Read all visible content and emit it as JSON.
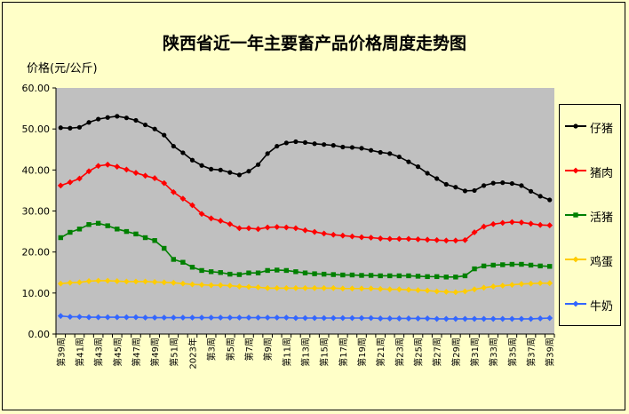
{
  "chart_data": {
    "type": "line",
    "title": "陕西省近一年主要畜产品价格周度走势图",
    "ylabel": "价格(元/公斤)",
    "xlabel": "",
    "ylim": [
      0,
      60
    ],
    "yticks": [
      "0.00",
      "10.00",
      "20.00",
      "30.00",
      "40.00",
      "50.00",
      "60.00"
    ],
    "grid": false,
    "legend": "right",
    "x": [
      "第39周",
      "第40周",
      "第41周",
      "第42周",
      "第43周",
      "第44周",
      "第45周",
      "第46周",
      "第47周",
      "第48周",
      "第49周",
      "第50周",
      "第51周",
      "第52周",
      "2023年",
      "第2周",
      "第3周",
      "第4周",
      "第5周",
      "第6周",
      "第7周",
      "第8周",
      "第9周",
      "第10周",
      "第11周",
      "第12周",
      "第13周",
      "第14周",
      "第15周",
      "第16周",
      "第17周",
      "第18周",
      "第19周",
      "第20周",
      "第21周",
      "第22周",
      "第23周",
      "第24周",
      "第25周",
      "第26周",
      "第27周",
      "第28周",
      "第29周",
      "第30周",
      "第31周",
      "第32周",
      "第33周",
      "第34周",
      "第35周",
      "第36周",
      "第37周",
      "第38周",
      "第39周"
    ],
    "series": [
      {
        "name": "仔猪",
        "color": "#000000",
        "marker": "circle",
        "values": [
          50.3,
          50.2,
          50.4,
          51.6,
          52.4,
          52.8,
          53.1,
          52.7,
          52.1,
          51.0,
          50.0,
          48.5,
          45.8,
          44.2,
          42.4,
          41.1,
          40.2,
          40.0,
          39.4,
          38.8,
          39.7,
          41.3,
          44.0,
          45.8,
          46.6,
          46.9,
          46.7,
          46.4,
          46.2,
          46.0,
          45.6,
          45.5,
          45.3,
          44.8,
          44.3,
          44.0,
          43.2,
          42.0,
          40.8,
          39.2,
          37.9,
          36.5,
          35.8,
          34.9,
          35.0,
          36.2,
          36.8,
          36.9,
          36.7,
          36.2,
          34.8,
          33.6,
          32.7
        ]
      },
      {
        "name": "猪肉",
        "color": "#ff0000",
        "marker": "diamond",
        "values": [
          36.2,
          37.0,
          37.9,
          39.7,
          41.0,
          41.3,
          40.8,
          40.1,
          39.3,
          38.6,
          38.0,
          36.8,
          34.6,
          33.0,
          31.4,
          29.3,
          28.2,
          27.6,
          26.8,
          25.8,
          25.8,
          25.6,
          26.0,
          26.1,
          26.0,
          25.8,
          25.3,
          24.9,
          24.5,
          24.2,
          24.0,
          23.8,
          23.6,
          23.5,
          23.3,
          23.2,
          23.2,
          23.2,
          23.1,
          23.0,
          22.9,
          22.8,
          22.8,
          22.9,
          24.8,
          26.2,
          26.8,
          27.1,
          27.3,
          27.2,
          26.9,
          26.6,
          26.5
        ]
      },
      {
        "name": "活猪",
        "color": "#008000",
        "marker": "square",
        "values": [
          23.5,
          24.8,
          25.6,
          26.7,
          27.0,
          26.4,
          25.6,
          25.0,
          24.4,
          23.5,
          22.8,
          20.9,
          18.2,
          17.5,
          16.3,
          15.5,
          15.2,
          15.0,
          14.6,
          14.5,
          14.9,
          14.9,
          15.5,
          15.6,
          15.5,
          15.2,
          14.9,
          14.7,
          14.6,
          14.5,
          14.4,
          14.4,
          14.3,
          14.3,
          14.2,
          14.2,
          14.2,
          14.2,
          14.1,
          14.0,
          14.0,
          13.9,
          13.9,
          14.2,
          15.9,
          16.6,
          16.8,
          16.9,
          17.0,
          17.0,
          16.8,
          16.6,
          16.5
        ]
      },
      {
        "name": "鸡蛋",
        "color": "#ffcc00",
        "marker": "diamond",
        "values": [
          12.3,
          12.5,
          12.6,
          12.9,
          13.0,
          13.0,
          12.9,
          12.8,
          12.8,
          12.8,
          12.7,
          12.6,
          12.5,
          12.3,
          12.1,
          12.0,
          11.9,
          11.9,
          11.8,
          11.6,
          11.5,
          11.4,
          11.2,
          11.2,
          11.2,
          11.2,
          11.2,
          11.2,
          11.2,
          11.2,
          11.1,
          11.1,
          11.1,
          11.1,
          11.0,
          10.9,
          10.9,
          10.8,
          10.7,
          10.6,
          10.4,
          10.3,
          10.2,
          10.4,
          10.9,
          11.3,
          11.6,
          11.8,
          12.0,
          12.2,
          12.3,
          12.4,
          12.4
        ]
      },
      {
        "name": "牛奶",
        "color": "#3366ff",
        "marker": "diamond",
        "values": [
          4.4,
          4.2,
          4.2,
          4.1,
          4.1,
          4.1,
          4.1,
          4.1,
          4.1,
          4.0,
          4.0,
          4.0,
          4.0,
          4.0,
          4.0,
          4.0,
          4.0,
          4.0,
          4.0,
          4.0,
          4.0,
          4.0,
          4.0,
          4.0,
          4.0,
          3.9,
          3.9,
          3.9,
          3.9,
          3.9,
          3.9,
          3.9,
          3.9,
          3.9,
          3.8,
          3.8,
          3.8,
          3.8,
          3.8,
          3.8,
          3.7,
          3.7,
          3.7,
          3.7,
          3.7,
          3.7,
          3.7,
          3.7,
          3.7,
          3.7,
          3.7,
          3.8,
          3.9
        ]
      }
    ]
  }
}
